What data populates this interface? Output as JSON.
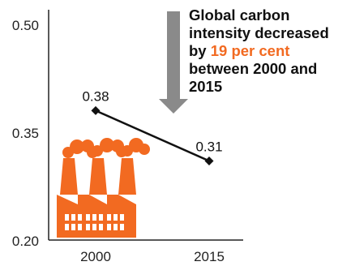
{
  "chart_data": {
    "type": "line",
    "title": "",
    "xlabel": "",
    "ylabel": "",
    "categories": [
      "2000",
      "2015"
    ],
    "series": [
      {
        "values": [
          0.38,
          0.31
        ]
      }
    ],
    "data_labels": [
      "0.38",
      "0.31"
    ],
    "y_ticks": [
      "0.50",
      "0.35",
      "0.20"
    ],
    "ylim": [
      0.2,
      0.5
    ],
    "grid": false,
    "annotation": {
      "text_before": "Global carbon intensity decreased by",
      "highlight": "19 per cent",
      "text_after": "between 2000 and 2015"
    }
  },
  "colors": {
    "accent": "#f26a21",
    "arrow": "#8a8a8a",
    "line": "#111111"
  },
  "icons": [
    "down-arrow-icon",
    "factory-icon"
  ]
}
